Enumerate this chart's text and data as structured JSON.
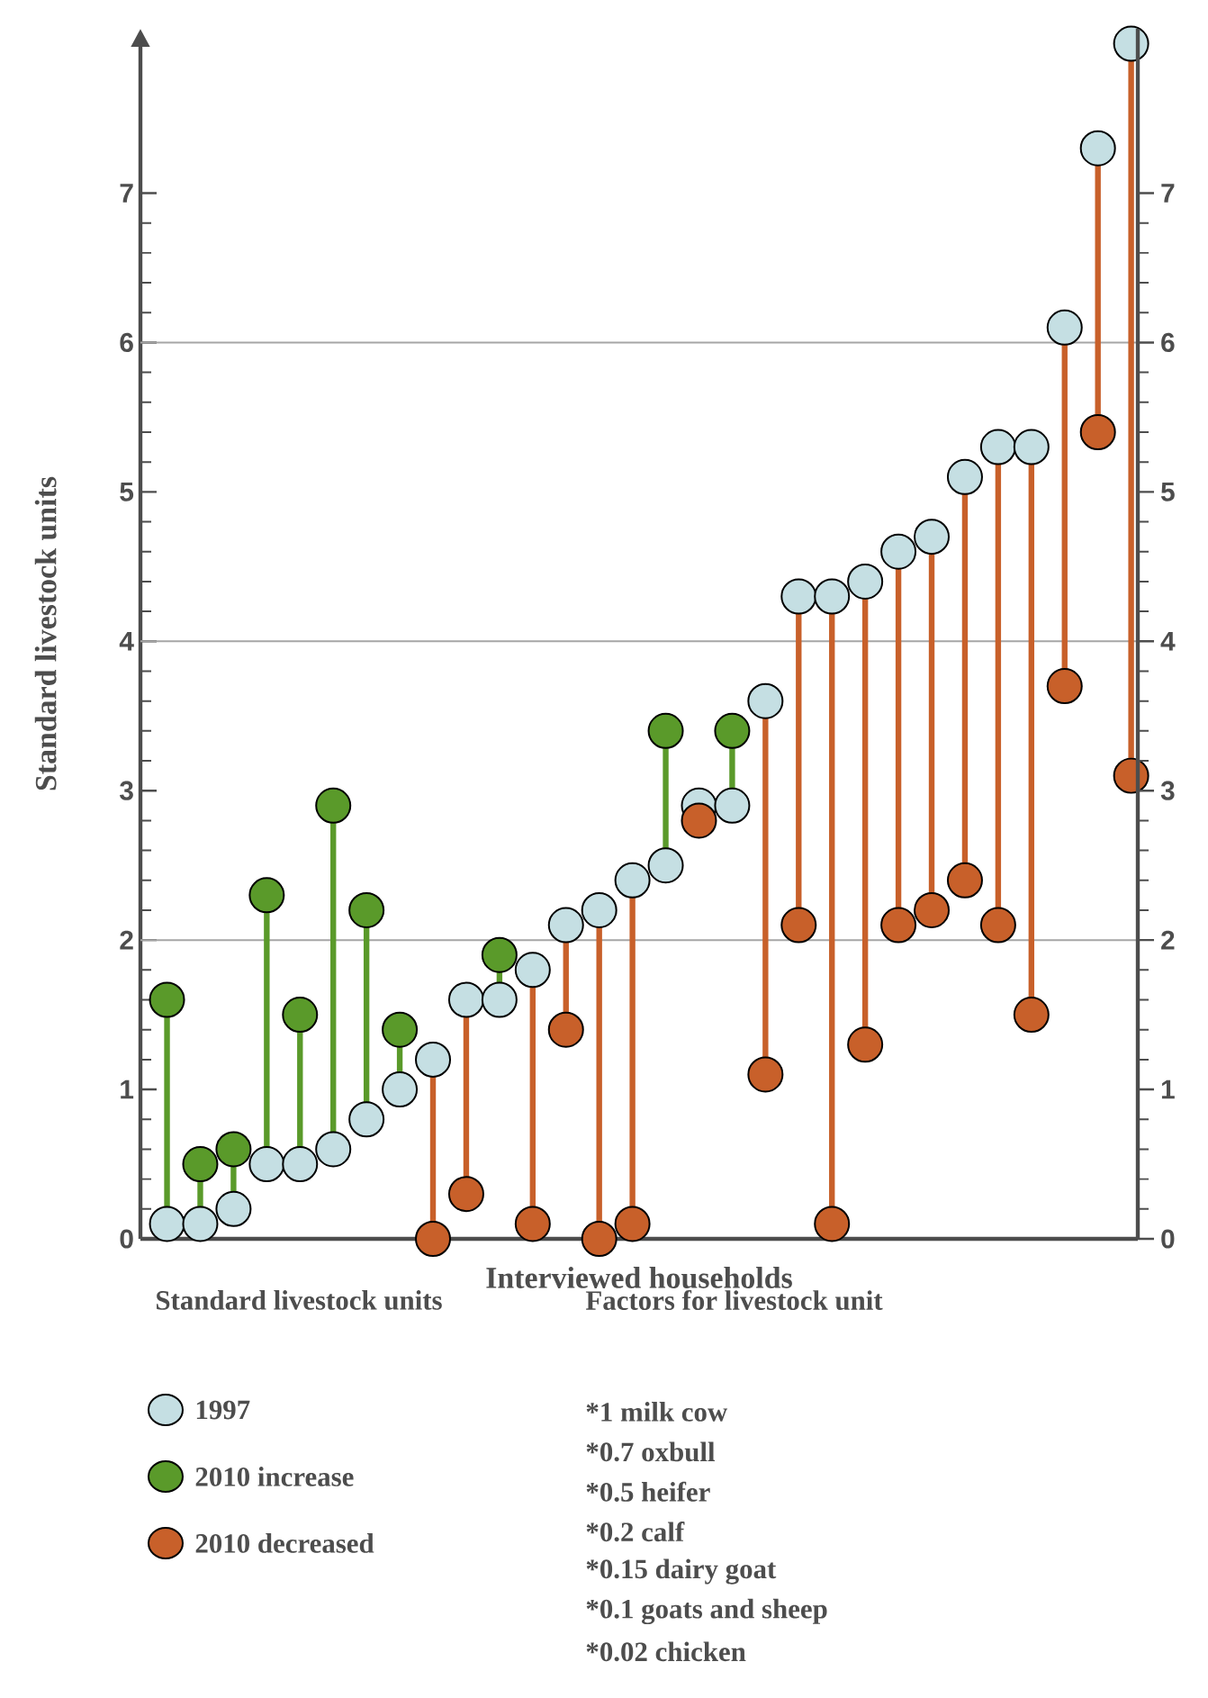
{
  "chart_data": {
    "type": "scatter",
    "xlabel": "Interviewed households",
    "ylabel": "Standard livestock units",
    "legend_title": "Standard livestock units",
    "categories": [
      null,
      null,
      null,
      null,
      null,
      null,
      null,
      null,
      null,
      null,
      null,
      null,
      null,
      null,
      null,
      null,
      null,
      null,
      null,
      null,
      null,
      null,
      null,
      null,
      null,
      null,
      null,
      null,
      null,
      null
    ],
    "series": [
      {
        "name": "1997",
        "color": "#c5dfe3",
        "values": [
          0.1,
          0.1,
          0.2,
          0.5,
          0.5,
          0.6,
          0.8,
          1.0,
          1.2,
          1.6,
          1.6,
          1.8,
          2.1,
          2.2,
          2.4,
          2.5,
          2.9,
          2.9,
          3.6,
          4.3,
          4.3,
          4.4,
          4.6,
          4.7,
          5.1,
          5.3,
          5.3,
          6.1,
          7.3,
          8.0
        ]
      },
      {
        "name": "2010 increase",
        "color": "#5a9a2a",
        "values": [
          1.6,
          0.5,
          0.6,
          2.3,
          1.5,
          2.9,
          2.2,
          1.4,
          null,
          null,
          1.9,
          null,
          null,
          null,
          null,
          3.4,
          null,
          3.4,
          null,
          null,
          null,
          null,
          null,
          null,
          null,
          null,
          null,
          null,
          null,
          null
        ]
      },
      {
        "name": "2010 decreased",
        "color": "#c8602a",
        "values": [
          null,
          null,
          null,
          null,
          null,
          null,
          null,
          null,
          0.0,
          0.3,
          null,
          0.1,
          1.4,
          0.0,
          0.1,
          null,
          2.8,
          null,
          1.1,
          2.1,
          0.1,
          1.3,
          2.1,
          2.2,
          2.4,
          2.1,
          1.5,
          3.7,
          5.4,
          3.1
        ]
      }
    ],
    "marker": "circle",
    "ylim": [
      0,
      8.1
    ],
    "yticks": [
      0,
      1,
      2,
      3,
      4,
      5,
      6,
      7
    ],
    "y2lim": [
      0,
      8.1
    ],
    "y2ticks": [
      0,
      1,
      2,
      3,
      4,
      5,
      6,
      7
    ],
    "ref_lines": [
      {
        "axis": "y",
        "value": 2,
        "color": "#a6a6a6"
      },
      {
        "axis": "y",
        "value": 4,
        "color": "#a6a6a6"
      },
      {
        "axis": "y",
        "value": 6,
        "color": "#a6a6a6"
      }
    ],
    "legend": "bottom",
    "annotations": [
      "Factors for livestock unit",
      "*1 milk cow",
      "*0.7 oxbull",
      "*0.5 heifer",
      "*0.2 calf",
      "*0.15 dairy goat",
      "*0.1 goats and sheep",
      "*0.02 chicken"
    ]
  }
}
